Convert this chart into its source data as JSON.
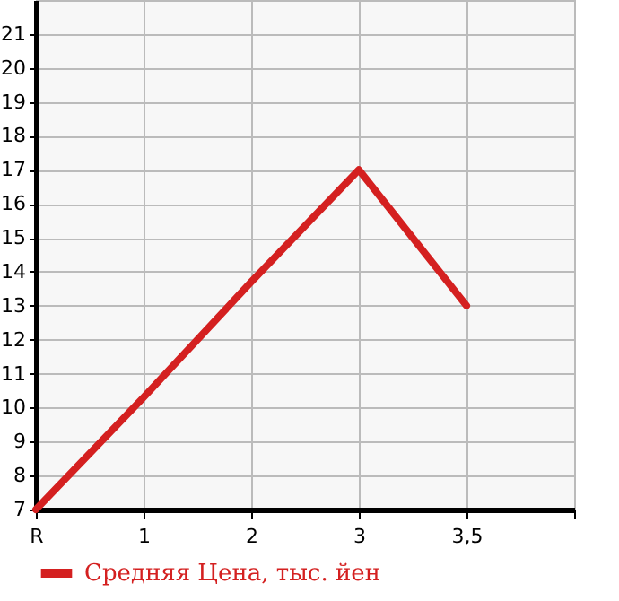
{
  "chart_data": {
    "type": "line",
    "categories": [
      "R",
      "1",
      "2",
      "3",
      "3,5",
      null
    ],
    "series": [
      {
        "name": "Средняя Цена, тыс. йен",
        "color": "#d42020",
        "values": [
          7,
          10.3,
          13.7,
          17,
          13,
          null
        ]
      }
    ],
    "ylim": [
      7,
      22
    ],
    "yticks": [
      7,
      8,
      9,
      10,
      11,
      12,
      13,
      14,
      15,
      16,
      17,
      18,
      19,
      20,
      21
    ],
    "grid": true,
    "legend": "bottom left",
    "line_style": "solid",
    "marker": "none"
  }
}
